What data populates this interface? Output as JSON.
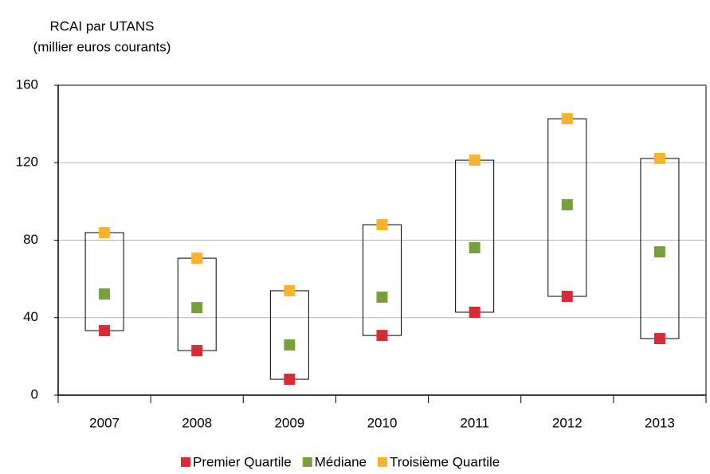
{
  "chart_data": {
    "type": "range",
    "y_label": [
      "RCAI par UTANS",
      "(millier euros courants)"
    ],
    "categories": [
      "2007",
      "2008",
      "2009",
      "2010",
      "2011",
      "2012",
      "2013"
    ],
    "series": [
      {
        "name": "Premier Quartile",
        "color": "#d92b35",
        "values": [
          33.3,
          23,
          8.2,
          30.8,
          42.8,
          51,
          29.2
        ]
      },
      {
        "name": "Médiane",
        "color": "#77a03a",
        "values": [
          52.2,
          45.2,
          25.9,
          50.6,
          76.1,
          98.3,
          74
        ]
      },
      {
        "name": "Troisième Quartile",
        "color": "#fbb22b",
        "values": [
          83.9,
          70.7,
          53.9,
          88,
          121.3,
          142.7,
          122.2
        ]
      }
    ],
    "ylim": [
      0,
      160
    ],
    "yticks": [
      0,
      40,
      80,
      120,
      160
    ],
    "grid": true
  }
}
